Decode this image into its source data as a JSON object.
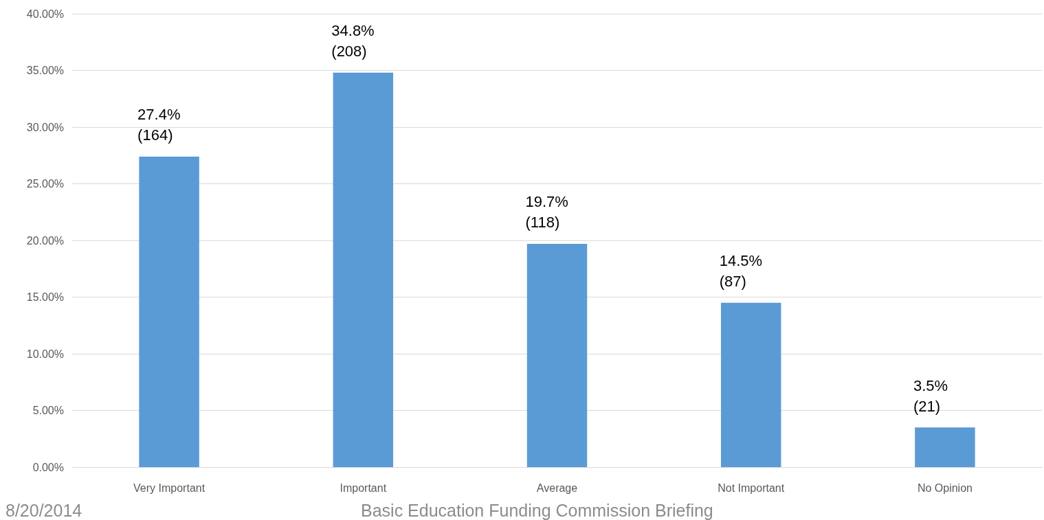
{
  "chart_data": {
    "type": "bar",
    "categories": [
      "Very Important",
      "Important",
      "Average",
      "Not Important",
      "No Opinion"
    ],
    "values": [
      27.4,
      34.8,
      19.7,
      14.5,
      3.5
    ],
    "value_labels": [
      "27.4%\n(164)",
      "34.8%\n(208)",
      "19.7%\n(118)",
      "14.5%\n(87)",
      "3.5%\n(21)"
    ],
    "color": "#5b9bd5",
    "ylim": [
      0,
      40
    ],
    "yticks": [
      {
        "value": 0,
        "label": "0.00%"
      },
      {
        "value": 5,
        "label": "5.00%"
      },
      {
        "value": 10,
        "label": "10.00%"
      },
      {
        "value": 15,
        "label": "15.00%"
      },
      {
        "value": 20,
        "label": "20.00%"
      },
      {
        "value": 25,
        "label": "25.00%"
      },
      {
        "value": 30,
        "label": "30.00%"
      },
      {
        "value": 35,
        "label": "35.00%"
      },
      {
        "value": 40,
        "label": "40.00%"
      }
    ],
    "grid": "y",
    "annotations": [
      "8/20/2014",
      "Basic Education Funding Commission Briefing"
    ]
  }
}
